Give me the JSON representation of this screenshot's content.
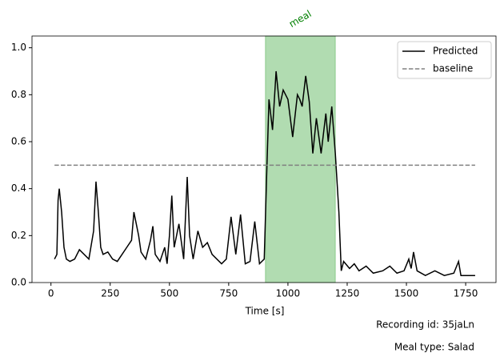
{
  "chart_data": {
    "type": "line",
    "xlabel": "Time [s]",
    "xlim": [
      -80,
      1878
    ],
    "ylim": [
      0,
      1.05
    ],
    "xticks": [
      0,
      250,
      500,
      750,
      1000,
      1250,
      1500,
      1750
    ],
    "yticks": [
      {
        "value": 0,
        "label": "0.0"
      },
      0.2,
      0.4,
      0.6,
      0.8,
      {
        "value": 1,
        "label": "1.0"
      }
    ],
    "legend": "upper right",
    "spans": [
      {
        "label": "meal",
        "xmin": 905,
        "xmax": 1200,
        "color": "#2ca02c"
      }
    ],
    "series": [
      {
        "name": "Predicted",
        "color": "#000000",
        "style": "solid",
        "x": [
          15,
          25,
          30,
          35,
          45,
          55,
          65,
          80,
          100,
          120,
          140,
          160,
          180,
          190,
          200,
          210,
          220,
          240,
          260,
          280,
          300,
          320,
          340,
          350,
          360,
          370,
          380,
          400,
          420,
          430,
          440,
          460,
          480,
          490,
          500,
          510,
          520,
          540,
          560,
          575,
          585,
          600,
          620,
          640,
          660,
          680,
          700,
          720,
          740,
          760,
          780,
          800,
          820,
          840,
          860,
          880,
          900,
          910,
          920,
          935,
          950,
          965,
          980,
          1000,
          1020,
          1040,
          1050,
          1060,
          1075,
          1090,
          1105,
          1120,
          1140,
          1160,
          1170,
          1185,
          1200,
          1215,
          1225,
          1235,
          1260,
          1280,
          1300,
          1330,
          1360,
          1400,
          1430,
          1460,
          1490,
          1510,
          1520,
          1530,
          1545,
          1580,
          1620,
          1660,
          1700,
          1720,
          1730,
          1760,
          1790
        ],
        "values": [
          0.1,
          0.12,
          0.35,
          0.4,
          0.3,
          0.15,
          0.1,
          0.09,
          0.1,
          0.14,
          0.12,
          0.1,
          0.22,
          0.43,
          0.3,
          0.15,
          0.12,
          0.13,
          0.1,
          0.09,
          0.12,
          0.15,
          0.18,
          0.3,
          0.25,
          0.2,
          0.13,
          0.1,
          0.18,
          0.24,
          0.12,
          0.09,
          0.15,
          0.08,
          0.2,
          0.37,
          0.15,
          0.25,
          0.1,
          0.45,
          0.2,
          0.1,
          0.22,
          0.15,
          0.17,
          0.12,
          0.1,
          0.08,
          0.1,
          0.28,
          0.12,
          0.29,
          0.08,
          0.09,
          0.26,
          0.08,
          0.1,
          0.45,
          0.78,
          0.65,
          0.9,
          0.75,
          0.82,
          0.78,
          0.62,
          0.8,
          0.78,
          0.75,
          0.88,
          0.77,
          0.55,
          0.7,
          0.55,
          0.72,
          0.6,
          0.75,
          0.55,
          0.3,
          0.05,
          0.09,
          0.06,
          0.08,
          0.05,
          0.07,
          0.04,
          0.05,
          0.07,
          0.04,
          0.05,
          0.1,
          0.06,
          0.13,
          0.05,
          0.03,
          0.05,
          0.03,
          0.04,
          0.09,
          0.03,
          0.03,
          0.03
        ]
      },
      {
        "name": "baseline",
        "color": "#808080",
        "style": "dashed",
        "x": [
          15,
          1790
        ],
        "values": [
          0.5,
          0.5
        ]
      }
    ],
    "notes": [
      "Recording id: 35jaLn",
      "Meal type: Salad"
    ]
  }
}
